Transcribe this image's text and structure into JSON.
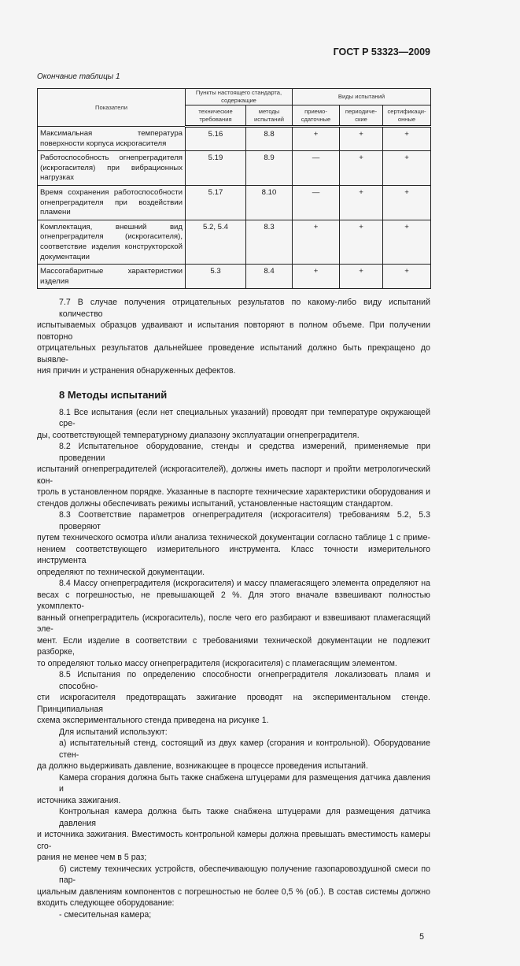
{
  "header": {
    "doc_code": "ГОСТ Р 53323—2009",
    "table_caption": "Окончание таблицы 1"
  },
  "table": {
    "head": {
      "indicators": "Показатели",
      "clauses": "Пункты настоящего стандарта, содержащие",
      "test_types": "Виды испытаний",
      "tech": "технические требования",
      "methods": "методы испытаний",
      "acceptance": "приемо-сдаточные",
      "periodic": "периодиче-ские",
      "cert": "сертификаци-онные"
    },
    "rows": [
      {
        "name": "Максимальная температура поверхности корпуса искрогасителя",
        "tech": "5.16",
        "method": "8.8",
        "a": "+",
        "p": "+",
        "c": "+"
      },
      {
        "name": "Работоспособность огнепреградителя (искрогасителя) при вибрационных нагрузках",
        "tech": "5.19",
        "method": "8.9",
        "a": "—",
        "p": "+",
        "c": "+"
      },
      {
        "name": "Время сохранения работоспособности огнепреградителя при воздействии пламени",
        "tech": "5.17",
        "method": "8.10",
        "a": "—",
        "p": "+",
        "c": "+"
      },
      {
        "name": "Комплектация, внешний вид огнепреградителя (искрогасителя), соответствие изделия конструкторской документации",
        "tech": "5.2, 5.4",
        "method": "8.3",
        "a": "+",
        "p": "+",
        "c": "+"
      },
      {
        "name": "Массогабаритные характеристики изделия",
        "tech": "5.3",
        "method": "8.4",
        "a": "+",
        "p": "+",
        "c": "+"
      }
    ]
  },
  "p77": [
    "7.7 В случае получения отрицательных результатов по какому-либо виду испытаний количество",
    "испытываемых образцов удваивают и испытания повторяют в полном объеме. При получении повторно",
    "отрицательных результатов дальнейшее проведение испытаний должно быть прекращено до выявле-",
    "ния причин и устранения обнаруженных дефектов."
  ],
  "section_title": "8 Методы испытаний",
  "paragraphs": [
    [
      "8.1 Все испытания (если нет специальных указаний) проводят при температуре окружающей сре-",
      "ды, соответствующей температурному диапазону эксплуатации огнепреградителя."
    ],
    [
      "8.2 Испытательное оборудование, стенды и средства измерений, применяемые при проведении",
      "испытаний огнепреградителей (искрогасителей), должны иметь паспорт и пройти метрологический кон-",
      "троль в установленном порядке. Указанные в паспорте технические характеристики оборудования и",
      "стендов должны обеспечивать режимы испытаний, установленные настоящим стандартом."
    ],
    [
      "8.3 Соответствие параметров огнепреградителя (искрогасителя) требованиям 5.2, 5.3 проверяют",
      "путем технического осмотра и/или анализа технической документации согласно таблице 1 с приме-",
      "нением соответствующего измерительного инструмента. Класс точности измерительного инструмента",
      "определяют по технической документации."
    ],
    [
      "8.4 Массу огнепреградителя (искрогасителя) и массу пламегасящего элемента определяют на",
      "весах с погрешностью, не превышающей 2 %. Для этого вначале взвешивают полностью укомплекто-",
      "ванный огнепреградитель (искрогаситель), после чего его разбирают и взвешивают пламегасящий эле-",
      "мент. Если изделие в соответствии с требованиями технической документации не подлежит разборке,",
      "то определяют только массу огнепреградителя (искрогасителя) с пламегасящим элементом."
    ],
    [
      "8.5 Испытания по определению способности огнепреградителя локализовать пламя и способно-",
      "сти искрогасителя предотвращать зажигание проводят на экспериментальном стенде. Принципиальная",
      "схема экспериментального стенда приведена на рисунке 1."
    ],
    [
      "Для испытаний используют:"
    ],
    [
      "а) испытательный стенд, состоящий из двух камер (сгорания и контрольной). Оборудование стен-",
      "да должно выдерживать давление, возникающее в процессе проведения испытаний."
    ],
    [
      "Камера сгорания должна быть также снабжена штуцерами для размещения датчика давления и",
      "источника зажигания."
    ],
    [
      "Контрольная камера должна быть также снабжена штуцерами для размещения датчика давления",
      "и источника зажигания. Вместимость контрольной камеры должна превышать вместимость камеры сго-",
      "рания не менее чем в 5 раз;"
    ],
    [
      "б) систему технических устройств, обеспечивающую получение газопаровоздушной смеси по пар-",
      "циальным давлениям компонентов с погрешностью не более 0,5 % (об.). В состав системы должно",
      "входить следующее оборудование:"
    ],
    [
      "- смесительная камера;"
    ]
  ],
  "page_number": "5"
}
